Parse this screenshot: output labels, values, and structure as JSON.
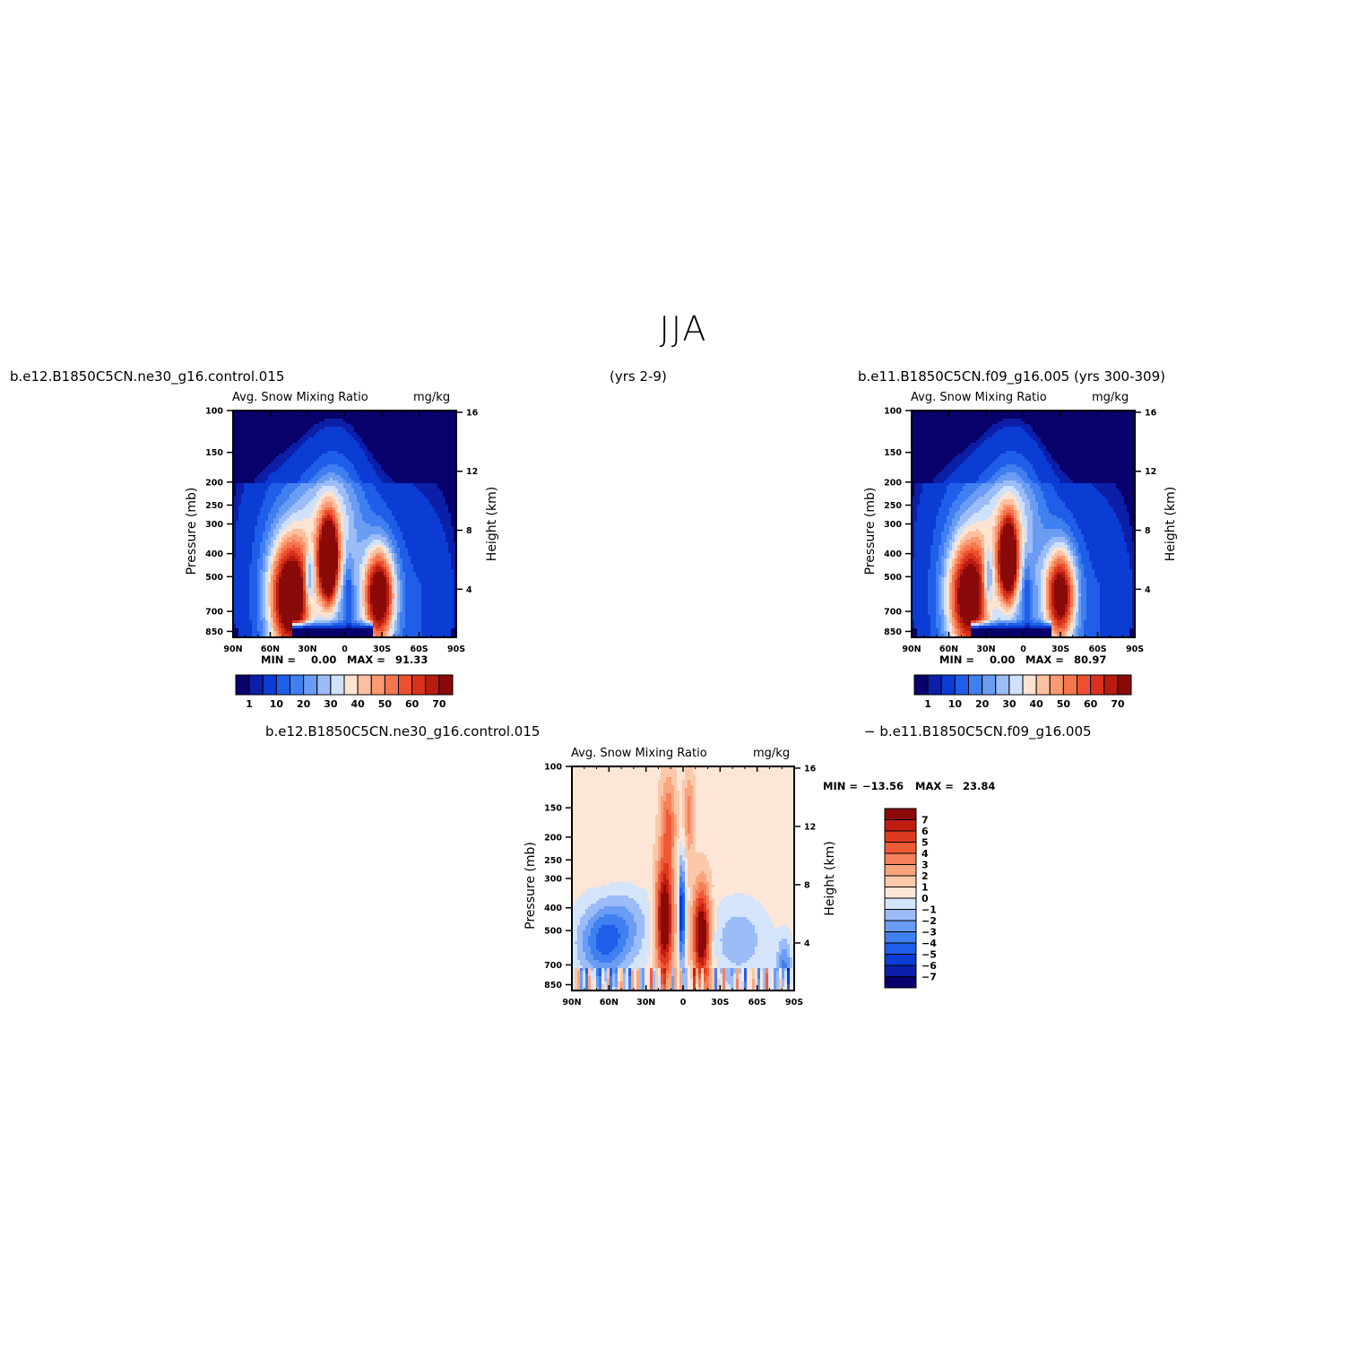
{
  "title": "JJA",
  "labels": {
    "case1_top": "b.e12.B1850C5CN.ne30_g16.control.015",
    "years_mid": "(yrs 2-9)",
    "case2_top": "b.e11.B1850C5CN.f09_g16.005 (yrs 300-309)",
    "case1_bottom": "b.e12.B1850C5CN.ne30_g16.control.015",
    "case2_bottom": "− b.e11.B1850C5CN.f09_g16.005"
  },
  "colors": {
    "seq": [
      "#08006b",
      "#0b1fa8",
      "#0b3cd4",
      "#1f5ee8",
      "#3f7ff0",
      "#6a9cf3",
      "#9bbcf7",
      "#cfe1fb",
      "#fde3d0",
      "#fcc0a0",
      "#fa9a72",
      "#f5764e",
      "#ec5030",
      "#d9321c",
      "#b81c10",
      "#8a0a0a"
    ],
    "diff": [
      "#08006b",
      "#0b1fa8",
      "#0b3cd4",
      "#1f5ee8",
      "#3f7ff0",
      "#6a9cf3",
      "#9bbcf7",
      "#d3e4fb",
      "#fde6d6",
      "#fcc8aa",
      "#faa47e",
      "#f5805a",
      "#ef5a36",
      "#dd3a20",
      "#c21d12",
      "#8a0a0a"
    ]
  },
  "chart_data": [
    {
      "type": "heatmap",
      "panel": "control",
      "title_left": "Avg. Snow Mixing Ratio",
      "title_right": "mg/kg",
      "ylabel": "Pressure (mb)",
      "ylabel_right": "Height (km)",
      "x_ticks": [
        "90N",
        "60N",
        "30N",
        "0",
        "30S",
        "60S",
        "90S"
      ],
      "y_ticks": [
        "100",
        "150",
        "200",
        "250",
        "300",
        "400",
        "500",
        "700",
        "850"
      ],
      "y_right_ticks": [
        "16",
        "12",
        "8",
        "4"
      ],
      "min_label": "MIN =",
      "min_value": "0.00",
      "max_label": "MAX =",
      "max_value": "91.33",
      "min": 0.0,
      "max": 91.33,
      "colorbar_labels": [
        "1",
        "10",
        "20",
        "30",
        "40",
        "50",
        "60",
        "70"
      ],
      "levels": [
        0.5,
        1,
        5,
        10,
        15,
        20,
        25,
        30,
        35,
        40,
        45,
        50,
        55,
        60,
        65,
        70,
        80
      ],
      "lobes": [
        {
          "lat": 44,
          "p": 620,
          "amp": 78
        },
        {
          "lat": 13,
          "p": 430,
          "amp": 91
        },
        {
          "lat": -28,
          "p": 600,
          "amp": 74
        }
      ]
    },
    {
      "type": "heatmap",
      "panel": "reference",
      "title_left": "Avg. Snow Mixing Ratio",
      "title_right": "mg/kg",
      "ylabel": "Pressure (mb)",
      "ylabel_right": "Height (km)",
      "x_ticks": [
        "90N",
        "60N",
        "30N",
        "0",
        "30S",
        "60S",
        "90S"
      ],
      "y_ticks": [
        "100",
        "150",
        "200",
        "250",
        "300",
        "400",
        "500",
        "700",
        "850"
      ],
      "y_right_ticks": [
        "16",
        "12",
        "8",
        "4"
      ],
      "min_label": "MIN =",
      "min_value": "0.00",
      "max_label": "MAX =",
      "max_value": "80.97",
      "min": 0.0,
      "max": 80.97,
      "colorbar_labels": [
        "1",
        "10",
        "20",
        "30",
        "40",
        "50",
        "60",
        "70"
      ],
      "levels": [
        0.5,
        1,
        5,
        10,
        15,
        20,
        25,
        30,
        35,
        40,
        45,
        50,
        55,
        60,
        65,
        70,
        80
      ],
      "lobes": [
        {
          "lat": 44,
          "p": 620,
          "amp": 72
        },
        {
          "lat": 12,
          "p": 430,
          "amp": 80
        },
        {
          "lat": -30,
          "p": 600,
          "amp": 68
        }
      ]
    },
    {
      "type": "heatmap",
      "panel": "difference",
      "title_left": "Avg. Snow Mixing Ratio",
      "title_right": "mg/kg",
      "ylabel": "Pressure (mb)",
      "ylabel_right": "Height (km)",
      "x_ticks": [
        "90N",
        "60N",
        "30N",
        "0",
        "30S",
        "60S",
        "90S"
      ],
      "y_ticks": [
        "100",
        "150",
        "200",
        "250",
        "300",
        "400",
        "500",
        "700",
        "850"
      ],
      "y_right_ticks": [
        "16",
        "12",
        "8",
        "4"
      ],
      "min_label": "MIN =",
      "min_value": "−13.56",
      "max_label": "MAX =",
      "max_value": "23.84",
      "min": -13.56,
      "max": 23.84,
      "colorbar_labels": [
        "7",
        "6",
        "5",
        "4",
        "3",
        "2",
        "1",
        "0",
        "−1",
        "−2",
        "−3",
        "−4",
        "−5",
        "−6",
        "−7"
      ],
      "levels": [
        -7,
        -6,
        -5,
        -4,
        -3,
        -2,
        -1,
        0,
        1,
        2,
        3,
        4,
        5,
        6,
        7
      ]
    }
  ]
}
